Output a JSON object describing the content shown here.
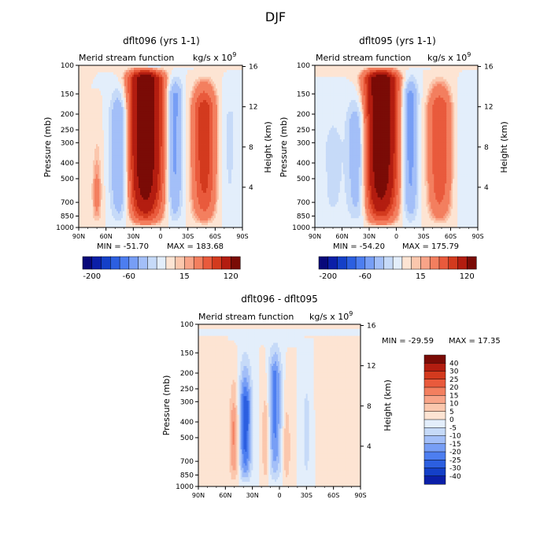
{
  "title": "DJF",
  "axes": {
    "lat_ticks": [
      "90N",
      "60N",
      "30N",
      "0",
      "30S",
      "60S",
      "90S"
    ],
    "pressure_ticks": [
      100,
      150,
      200,
      250,
      300,
      400,
      500,
      700,
      850,
      1000
    ],
    "height_ticks": [
      4,
      8,
      12,
      16
    ],
    "ylabel_left": "Pressure (mb)",
    "ylabel_right": "Height (km)",
    "units_prefix": "kg/s x 10",
    "units_exp": "9"
  },
  "panels": [
    {
      "title": "dflt096 (yrs 1-1)",
      "field_label": "Merid stream function",
      "stats": "MIN = -51.70   MAX = 183.68",
      "stats_min": "MIN = -51.70",
      "stats_max": "MAX = 183.68",
      "features": [
        {
          "lat": 16,
          "amp": 180,
          "w": 12,
          "pmax": 120
        },
        {
          "lat": 45,
          "amp": -48,
          "w": 7,
          "pmax": 200
        },
        {
          "lat": -15,
          "amp": -50,
          "w": 6,
          "pmax": 150
        },
        {
          "lat": -48,
          "amp": 75,
          "w": 9,
          "pmax": 180
        },
        {
          "lat": 70,
          "amp": 25,
          "w": 4,
          "pmax": 550
        },
        {
          "lat": 8,
          "amp": -12,
          "w": 5,
          "pmax": 100
        },
        {
          "lat": -75,
          "amp": -12,
          "w": 8,
          "pmax": 200
        }
      ]
    },
    {
      "title": "dflt095 (yrs 1-1)",
      "field_label": "Merid stream function",
      "stats": "MIN = -54.20   MAX = 175.79",
      "stats_min": "MIN = -54.20",
      "stats_max": "MAX = 175.79",
      "features": [
        {
          "lat": 17,
          "amp": 172,
          "w": 12,
          "pmax": 120
        },
        {
          "lat": 42,
          "amp": -45,
          "w": 8,
          "pmax": 220
        },
        {
          "lat": -15,
          "amp": -52,
          "w": 6,
          "pmax": 150
        },
        {
          "lat": -48,
          "amp": 60,
          "w": 9,
          "pmax": 180
        },
        {
          "lat": 70,
          "amp": -15,
          "w": 8,
          "pmax": 300
        },
        {
          "lat": -75,
          "amp": -10,
          "w": 8,
          "pmax": 200
        }
      ]
    },
    {
      "title": "dflt096 - dflt095",
      "field_label": "Merid stream function",
      "stats": "MIN = -29.59   MAX =  17.35",
      "stats_min": "MIN = -29.59",
      "stats_max": "MAX =  17.35",
      "features": [
        {
          "lat": 50,
          "amp": 17,
          "w": 4,
          "pmax": 400
        },
        {
          "lat": 38,
          "amp": -29,
          "w": 5,
          "pmax": 300
        },
        {
          "lat": 15,
          "amp": 12,
          "w": 3,
          "pmax": 400
        },
        {
          "lat": 5,
          "amp": -22,
          "w": 5,
          "pmax": 200
        },
        {
          "lat": -8,
          "amp": 10,
          "w": 3,
          "pmax": 500
        },
        {
          "lat": -30,
          "amp": -8,
          "w": 3,
          "pmax": 350
        },
        {
          "lat": -50,
          "amp": 4,
          "w": 4,
          "pmax": 300
        },
        {
          "lat": 70,
          "amp": 3,
          "w": 4,
          "pmax": 300
        }
      ]
    }
  ],
  "colorbar_top": {
    "levels": [
      -200,
      -150,
      -100,
      -80,
      -60,
      -40,
      -20,
      -10,
      0,
      10,
      15,
      20,
      40,
      60,
      80,
      120,
      150
    ],
    "labels": [
      "-200",
      "-60",
      "15",
      "120"
    ],
    "colors": [
      "#08087a",
      "#0b1fa8",
      "#1440c8",
      "#2c5fe0",
      "#4d7ef0",
      "#779ef5",
      "#a3bff8",
      "#c6daf8",
      "#e3eefb",
      "#fde4d3",
      "#fbc7ad",
      "#f8a488",
      "#f37f5f",
      "#e95a3c",
      "#d33a1e",
      "#b31d10",
      "#7a0b06"
    ]
  },
  "colorbar_diff": {
    "labels": [
      "40",
      "30",
      "25",
      "20",
      "15",
      "10",
      "5",
      "0",
      "-5",
      "-10",
      "-15",
      "-20",
      "-25",
      "-30",
      "-40"
    ],
    "levels": [
      -40,
      -30,
      -25,
      -20,
      -15,
      -10,
      -5,
      0,
      5,
      10,
      15,
      20,
      25,
      30,
      40
    ],
    "colors": [
      "#7a0b06",
      "#b31d10",
      "#d33a1e",
      "#e95a3c",
      "#f37f5f",
      "#f8a488",
      "#fbc7ad",
      "#fde4d3",
      "#e3eefb",
      "#c6daf8",
      "#a3bff8",
      "#779ef5",
      "#4d7ef0",
      "#2c5fe0",
      "#1440c8",
      "#0b1fa8"
    ]
  },
  "chart_data": [
    {
      "type": "heatmap",
      "title": "dflt096 (yrs 1-1)",
      "field": "Merid stream function",
      "units": "kg/s x 10^9",
      "xlabel": "",
      "ylabel": "Pressure (mb)",
      "ylabel2": "Height (km)",
      "x_ticks": [
        "90N",
        "60N",
        "30N",
        "0",
        "30S",
        "60S",
        "90S"
      ],
      "y_ticks": [
        100,
        150,
        200,
        250,
        300,
        400,
        500,
        700,
        850,
        1000
      ],
      "min": -51.7,
      "max": 183.68
    },
    {
      "type": "heatmap",
      "title": "dflt095 (yrs 1-1)",
      "field": "Merid stream function",
      "units": "kg/s x 10^9",
      "xlabel": "",
      "ylabel": "Pressure (mb)",
      "ylabel2": "Height (km)",
      "x_ticks": [
        "90N",
        "60N",
        "30N",
        "0",
        "30S",
        "60S",
        "90S"
      ],
      "y_ticks": [
        100,
        150,
        200,
        250,
        300,
        400,
        500,
        700,
        850,
        1000
      ],
      "min": -54.2,
      "max": 175.79
    },
    {
      "type": "heatmap",
      "title": "dflt096 - dflt095",
      "field": "Merid stream function",
      "units": "kg/s x 10^9",
      "xlabel": "",
      "ylabel": "Pressure (mb)",
      "ylabel2": "Height (km)",
      "x_ticks": [
        "90N",
        "60N",
        "30N",
        "0",
        "30S",
        "60S",
        "90S"
      ],
      "y_ticks": [
        100,
        150,
        200,
        250,
        300,
        400,
        500,
        700,
        850,
        1000
      ],
      "min": -29.59,
      "max": 17.35
    }
  ]
}
